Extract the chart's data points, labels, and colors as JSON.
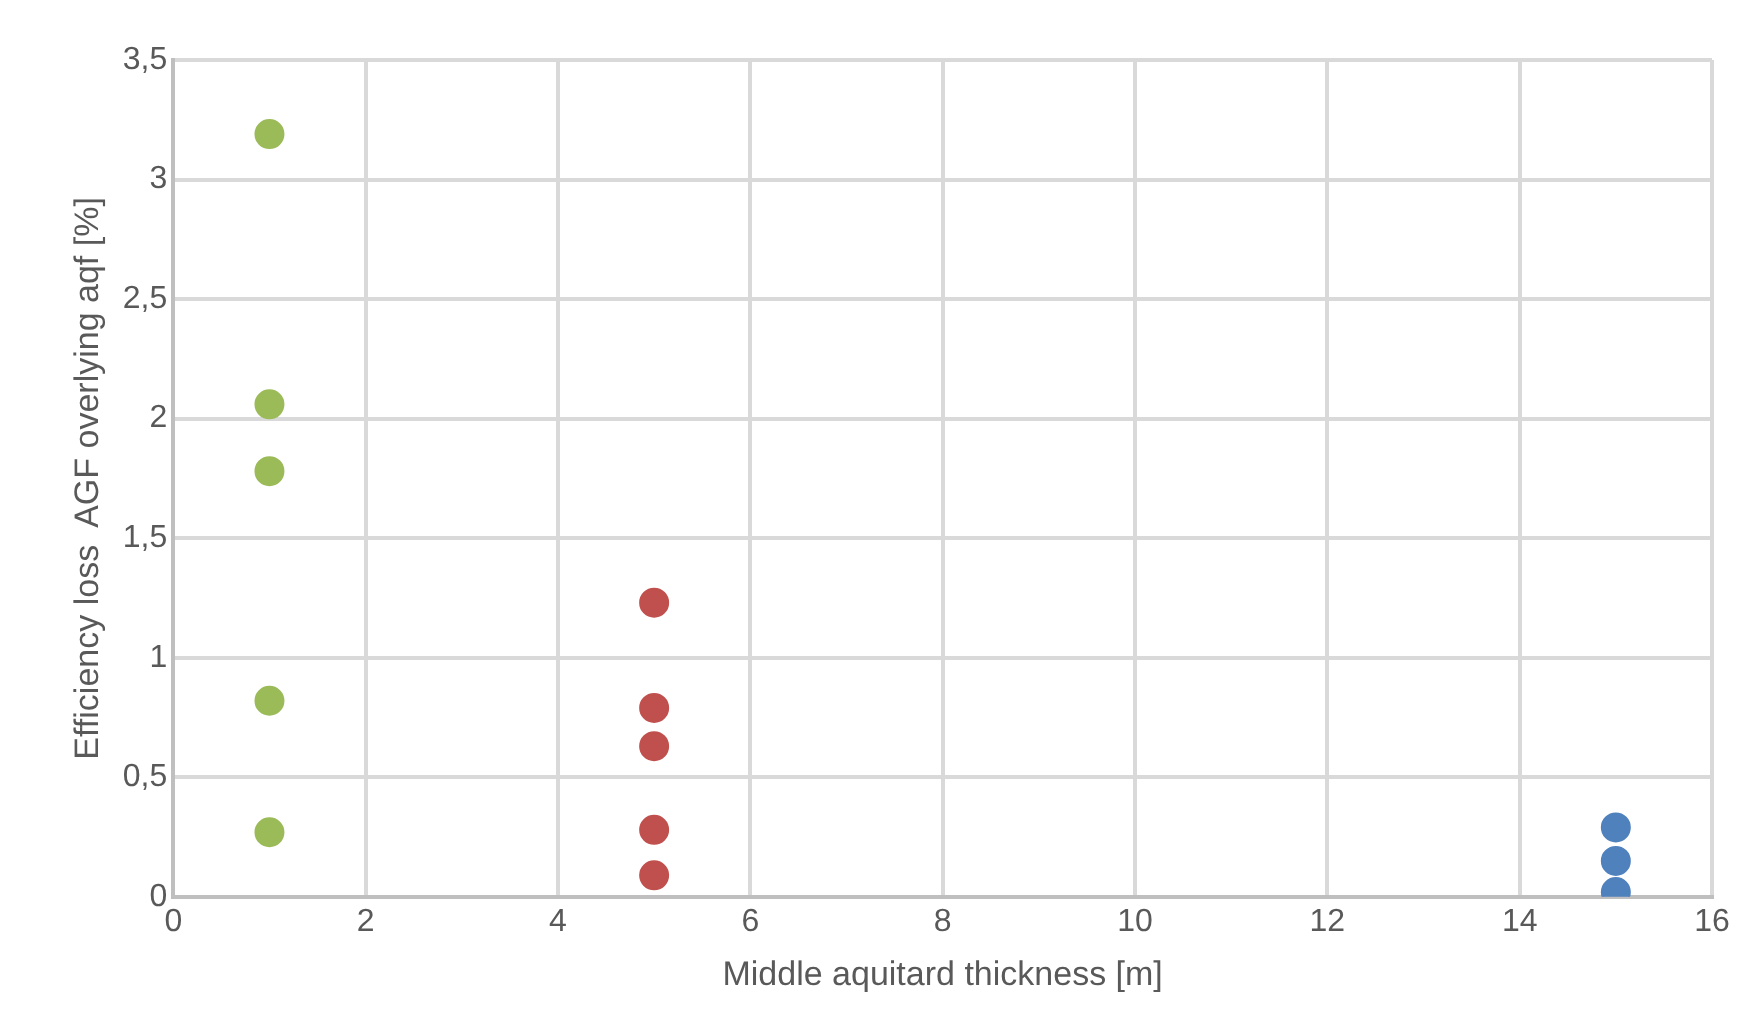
{
  "chart_data": {
    "type": "scatter",
    "xlabel": "Middle aquitard thickness [m]",
    "ylabel": "Efficiency loss  AGF overlying aqf [%]",
    "series": [
      {
        "color": "#9bbb59",
        "x": [
          1,
          1,
          1,
          1,
          1
        ],
        "values": [
          3.19,
          2.06,
          1.78,
          0.82,
          0.27
        ]
      },
      {
        "color": "#c0504d",
        "x": [
          5,
          5,
          5,
          5,
          5
        ],
        "values": [
          1.23,
          0.79,
          0.63,
          0.28,
          0.09
        ]
      },
      {
        "color": "#4f81bd",
        "x": [
          15,
          15,
          15
        ],
        "values": [
          0.29,
          0.15,
          0.02
        ]
      }
    ],
    "xlim": [
      0,
      16
    ],
    "xticks": [
      0,
      2,
      4,
      6,
      8,
      10,
      12,
      14,
      16
    ],
    "ylim": [
      0,
      3.5
    ],
    "yticks": [
      0,
      {
        "value": 0.5,
        "label": "0,5"
      },
      1,
      {
        "value": 1.5,
        "label": "1,5"
      },
      2,
      {
        "value": 2.5,
        "label": "2,5"
      },
      3,
      {
        "value": 3.5,
        "label": "3,5"
      }
    ],
    "grid": true,
    "legend": false,
    "marker": "circle"
  }
}
